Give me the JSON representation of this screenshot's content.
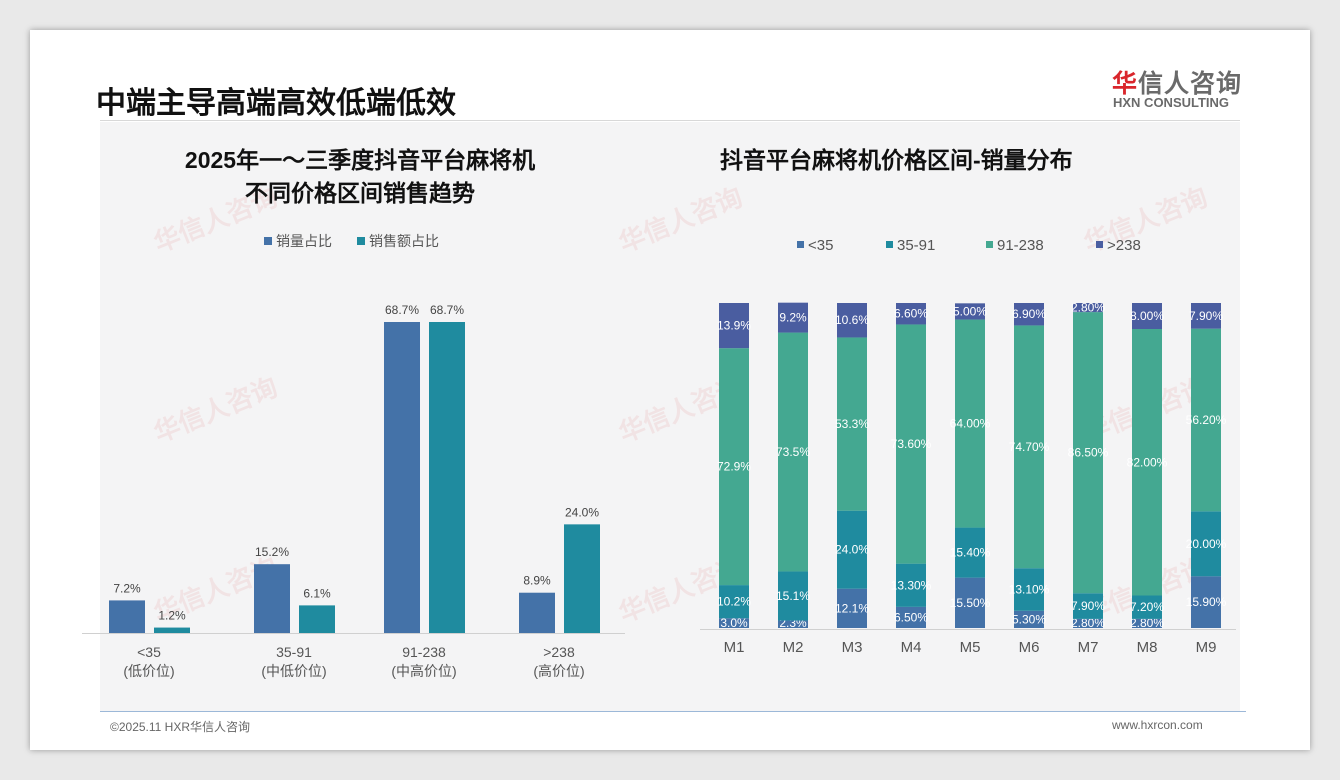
{
  "header": {
    "title": "中端主导高端高效低端低效",
    "logo_cn_red": "华",
    "logo_cn": "信人咨询",
    "logo_en": "HXN CONSULTING"
  },
  "footer": {
    "copyright": "©2025.11 HXR华信人咨询",
    "website": "www.hxrcon.com"
  },
  "chart_data": [
    {
      "type": "bar",
      "title_line1": "2025年一～三季度抖音平台麻将机",
      "title_line2": "不同价格区间销售趋势",
      "categories": [
        "<35",
        "35-91",
        "91-238",
        ">238"
      ],
      "category_sublabels": [
        "(低价位)",
        "(中低价位)",
        "(中高价位)",
        "(高价位)"
      ],
      "series": [
        {
          "name": "销量占比",
          "color": "#4472a8",
          "values": [
            7.2,
            15.2,
            68.7,
            8.9
          ]
        },
        {
          "name": "销售额占比",
          "color": "#1f8b9f",
          "values": [
            1.2,
            6.1,
            68.7,
            24.0
          ]
        }
      ],
      "unit": "%",
      "ylim": [
        0,
        68.7
      ],
      "legend": "top"
    },
    {
      "type": "bar",
      "stacked": true,
      "title": "抖音平台麻将机价格区间-销量分布",
      "categories": [
        "M1",
        "M2",
        "M3",
        "M4",
        "M5",
        "M6",
        "M7",
        "M8",
        "M9"
      ],
      "series": [
        {
          "name": "<35",
          "color": "#4472a8",
          "values": [
            3.0,
            2.3,
            12.1,
            6.5,
            15.5,
            5.3,
            2.8,
            2.8,
            15.9
          ],
          "labels": [
            "3.0%",
            "2.3%",
            "12.1%",
            "6.50%",
            "15.50%",
            "5.30%",
            "2.80%",
            "2.80%",
            "15.90%"
          ]
        },
        {
          "name": "35-91",
          "color": "#1f8b9f",
          "values": [
            10.2,
            15.1,
            24.0,
            13.3,
            15.4,
            13.1,
            7.9,
            7.2,
            20.0
          ],
          "labels": [
            "10.2%",
            "15.1%",
            "24.0%",
            "13.30%",
            "15.40%",
            "13.10%",
            "7.90%",
            "7.20%",
            "20.00%"
          ]
        },
        {
          "name": "91-238",
          "color": "#44a891",
          "values": [
            72.9,
            73.5,
            53.3,
            73.6,
            64.0,
            74.7,
            86.5,
            82.0,
            56.2
          ],
          "labels": [
            "72.9%",
            "73.5%",
            "53.3%",
            "73.60%",
            "64.00%",
            "74.70%",
            "86.50%",
            "82.00%",
            "56.20%"
          ]
        },
        {
          "name": ">238",
          "color": "#4a5da0",
          "values": [
            13.9,
            9.2,
            10.6,
            6.6,
            5.0,
            6.9,
            2.8,
            8.0,
            7.9
          ],
          "labels": [
            "13.9%",
            "9.2%",
            "10.6%",
            "6.60%",
            "5.00%",
            "6.90%",
            "2.80%",
            "8.00%",
            "7.90%"
          ]
        }
      ],
      "unit": "%",
      "ylim": [
        0,
        100
      ],
      "legend": "top"
    }
  ]
}
